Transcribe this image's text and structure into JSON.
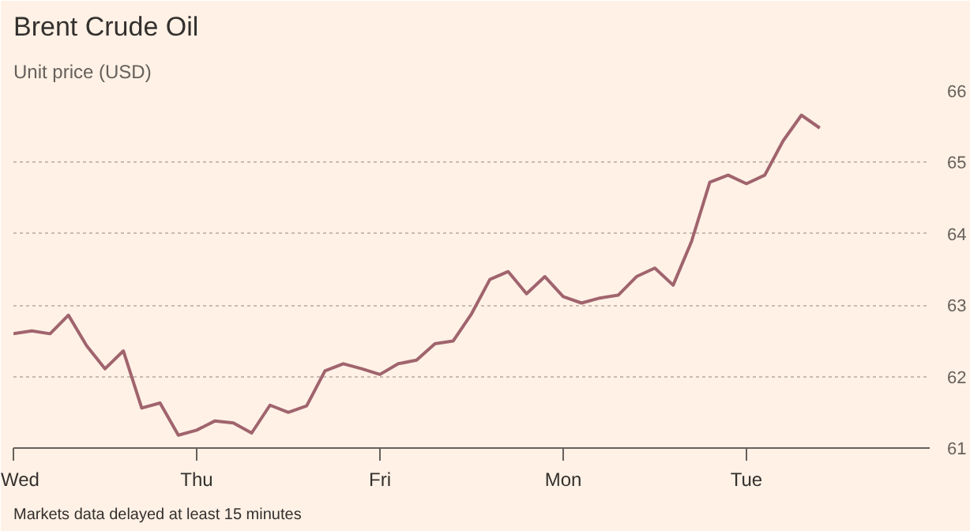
{
  "chart_data": {
    "type": "line",
    "title": "Brent Crude Oil",
    "subtitle": "Unit price (USD)",
    "categories": [
      "Wed",
      null,
      null,
      null,
      null,
      null,
      null,
      null,
      null,
      null,
      "Thu",
      null,
      null,
      null,
      null,
      null,
      null,
      null,
      null,
      null,
      "Fri",
      null,
      null,
      null,
      null,
      null,
      null,
      null,
      null,
      null,
      "Mon",
      null,
      null,
      null,
      null,
      null,
      null,
      null,
      null,
      null,
      "Tue",
      null,
      null,
      null,
      null,
      null,
      null,
      null,
      null,
      null,
      null
    ],
    "series": [
      {
        "color": "#a0646e",
        "values": [
          62.6,
          62.64,
          62.6,
          62.86,
          62.43,
          62.11,
          62.36,
          61.56,
          61.63,
          61.18,
          61.25,
          61.38,
          61.35,
          61.21,
          61.6,
          61.5,
          61.59,
          62.08,
          62.18,
          62.11,
          62.03,
          62.18,
          62.23,
          62.46,
          62.5,
          62.88,
          63.36,
          63.47,
          63.16,
          63.4,
          63.12,
          63.03,
          63.1,
          63.14,
          63.4,
          63.52,
          63.28,
          63.89,
          64.72,
          64.82,
          64.7,
          64.82,
          65.3,
          65.66,
          65.48,
          null,
          null,
          null,
          null,
          null,
          null
        ]
      }
    ],
    "ylim": [
      61,
      66
    ],
    "yticks": [
      61,
      62,
      63,
      64,
      65,
      66
    ],
    "grid": "y",
    "line_style": "solid",
    "annotations": [
      "Markets data delayed at least 15 minutes"
    ]
  }
}
